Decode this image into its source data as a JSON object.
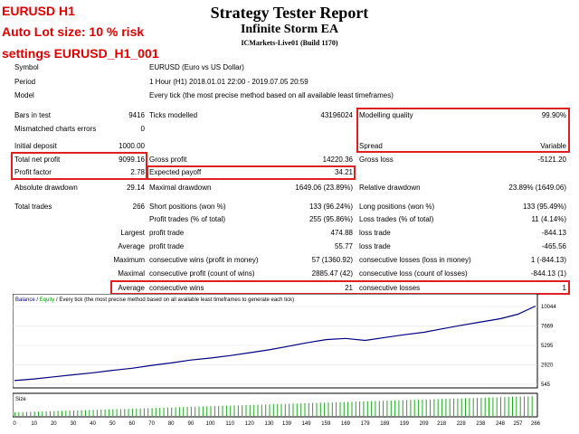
{
  "overlay": {
    "line1": "EURUSD H1",
    "line2": "Auto Lot size: 10 % risk",
    "line3": "settings EURUSD_H1_001",
    "color": "#e00000"
  },
  "report": {
    "title": "Strategy Tester Report",
    "ea_name": "Infinite Storm EA",
    "server": "ICMarkets-Live01 (Build 1170)"
  },
  "info": {
    "symbol_label": "Symbol",
    "symbol_value": "EURUSD (Euro vs US Dollar)",
    "period_label": "Period",
    "period_value": "1 Hour (H1) 2018.01.01 22:00 - 2019.07.05 20:59",
    "model_label": "Model",
    "model_value": "Every tick (the most precise method based on all available least timeframes)"
  },
  "stats": {
    "bars_label": "Bars in test",
    "bars_value": "9416",
    "ticks_label": "Ticks modelled",
    "ticks_value": "43196024",
    "quality_label": "Modelling quality",
    "quality_value": "99.90%",
    "mismatch_label": "Mismatched charts errors",
    "mismatch_value": "0",
    "deposit_label": "Initial deposit",
    "deposit_value": "1000.00",
    "spread_label": "Spread",
    "spread_value": "Variable",
    "netprofit_label": "Total net profit",
    "netprofit_value": "9099.16",
    "grossprofit_label": "Gross profit",
    "grossprofit_value": "14220.36",
    "grossloss_label": "Gross loss",
    "grossloss_value": "-5121.20",
    "pf_label": "Profit factor",
    "pf_value": "2.78",
    "payoff_label": "Expected payoff",
    "payoff_value": "34.21",
    "absdd_label": "Absolute drawdown",
    "absdd_value": "29.14",
    "maxdd_label": "Maximal drawdown",
    "maxdd_value": "1649.06 (23.89%)",
    "reldd_label": "Relative drawdown",
    "reldd_value": "23.89% (1649.06)",
    "trades_label": "Total trades",
    "trades_value": "266",
    "short_label": "Short positions (won %)",
    "short_value": "133 (96.24%)",
    "long_label": "Long positions (won %)",
    "long_value": "133 (95.49%)",
    "ptrades_label": "Profit trades (% of total)",
    "ptrades_value": "255 (95.86%)",
    "ltrades_label": "Loss trades (% of total)",
    "ltrades_value": "11 (4.14%)",
    "largest_label": "Largest",
    "largest_pt_label": "profit trade",
    "largest_pt_value": "474.88",
    "largest_lt_label": "loss trade",
    "largest_lt_value": "-844.13",
    "average_label": "Average",
    "average_pt_label": "profit trade",
    "average_pt_value": "55.77",
    "average_lt_label": "loss trade",
    "average_lt_value": "-465.56",
    "maximum_label": "Maximum",
    "max_cw_label": "consecutive wins (profit in money)",
    "max_cw_value": "57 (1360.92)",
    "max_cl_label": "consecutive losses (loss in money)",
    "max_cl_value": "1 (-844.13)",
    "maximal_label": "Maximal",
    "maximal_cp_label": "consecutive profit (count of wins)",
    "maximal_cp_value": "2885.47 (42)",
    "maximal_cl_label": "consecutive loss (count of losses)",
    "maximal_cl_value": "-844.13 (1)",
    "avg2_label": "Average",
    "avg_cw_label": "consecutive wins",
    "avg_cw_value": "21",
    "avg_cl_label": "consecutive losses",
    "avg_cl_value": "1"
  },
  "chart_data": {
    "type": "line",
    "legend_balance": "Balance",
    "legend_sep": " / ",
    "legend_equity": "Equity",
    "legend_rest": " / Every tick (the most precise method based on all available least timeframes to generate each tick)",
    "size_label": "Size",
    "y_ticks": [
      "10044",
      "7669",
      "5295",
      "2920",
      "545"
    ],
    "x_ticks": [
      "0",
      "10",
      "20",
      "30",
      "40",
      "50",
      "60",
      "70",
      "80",
      "90",
      "100",
      "110",
      "120",
      "130",
      "139",
      "149",
      "159",
      "169",
      "179",
      "189",
      "199",
      "209",
      "218",
      "228",
      "238",
      "248",
      "257",
      "266"
    ],
    "ylim": [
      545,
      10044
    ],
    "xlim": [
      0,
      266
    ],
    "series": [
      {
        "name": "Balance",
        "color": "#000080",
        "x": [
          0,
          10,
          20,
          30,
          40,
          50,
          60,
          70,
          80,
          90,
          100,
          110,
          120,
          130,
          139,
          149,
          159,
          169,
          179,
          189,
          199,
          209,
          218,
          228,
          238,
          248,
          257,
          266
        ],
        "values": [
          1000,
          1200,
          1450,
          1700,
          1950,
          2250,
          2500,
          2850,
          3150,
          3500,
          3750,
          4050,
          4400,
          4750,
          5150,
          5600,
          6000,
          6150,
          5900,
          6250,
          6600,
          6900,
          7300,
          7750,
          8150,
          8550,
          9100,
          10099
        ]
      }
    ],
    "colors": {
      "balance": "#000080",
      "equity": "#00a000",
      "bars": "#22aa22"
    }
  }
}
